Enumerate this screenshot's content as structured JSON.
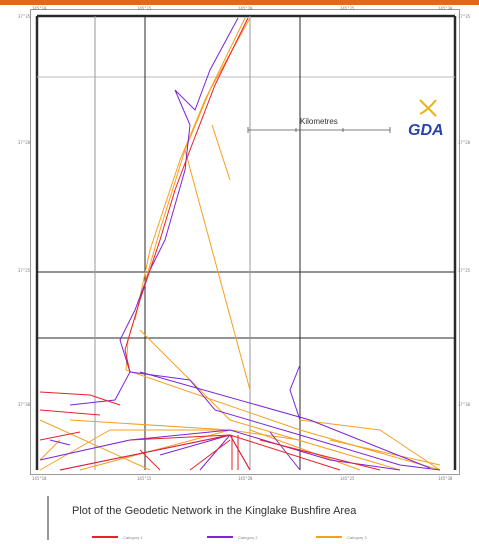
{
  "colors": {
    "accent_strip": "#e0691a",
    "red_lines": "#e8202a",
    "purple_lines": "#7b25d8",
    "orange_lines": "#f5a020",
    "logo_blue": "#2a43a6",
    "logo_swoosh": "#e8b21a"
  },
  "map": {
    "title": "Plot of the Geodetic Network in the Kinglake Bushfire Area",
    "scale_label": "Kilometres",
    "logo_text": "GDA",
    "top_ticks": [
      "145°10",
      "145°15",
      "145°20",
      "145°25",
      "145°30"
    ],
    "bottom_ticks": [
      "145°10",
      "145°15",
      "145°20",
      "145°25",
      "145°30"
    ],
    "left_ticks": [
      "37°20",
      "37°25",
      "37°30",
      "37°35"
    ],
    "right_ticks": [
      "37°20",
      "37°25",
      "37°30",
      "37°35"
    ]
  },
  "legend": {
    "items": [
      {
        "label": "Category 1",
        "color_key": "red_lines"
      },
      {
        "label": "Category 2",
        "color_key": "purple_lines"
      },
      {
        "label": "Category 3",
        "color_key": "orange_lines"
      }
    ]
  }
}
